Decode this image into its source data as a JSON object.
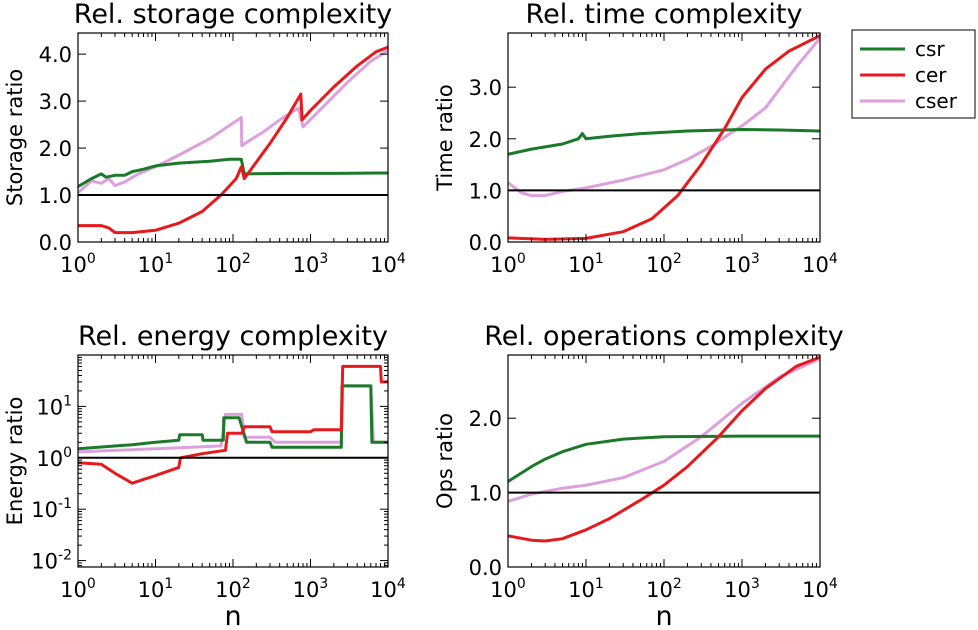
{
  "legend": {
    "position": "top-right",
    "items": [
      {
        "label": "csr",
        "color": "#1a7a29"
      },
      {
        "label": "cer",
        "color": "#e8191c"
      },
      {
        "label": "cser",
        "color": "#dda0dd"
      }
    ]
  },
  "shared_xlabel": "n",
  "baseline_color": "#000000",
  "chart_data": [
    {
      "type": "line",
      "title": "Rel. storage complexity",
      "ylabel": "Storage ratio",
      "xscale": "log",
      "yscale": "linear",
      "xlim": [
        1,
        10000
      ],
      "ylim": [
        0,
        4.45
      ],
      "yticks": [
        {
          "v": 0,
          "label": "0.0"
        },
        {
          "v": 1,
          "label": "1.0"
        },
        {
          "v": 2,
          "label": "2.0"
        },
        {
          "v": 3,
          "label": "3.0"
        },
        {
          "v": 4,
          "label": "4.0"
        }
      ],
      "xticks": [
        {
          "v": 1,
          "base": "10",
          "exp": "0"
        },
        {
          "v": 10,
          "base": "10",
          "exp": "1"
        },
        {
          "v": 100,
          "base": "10",
          "exp": "2"
        },
        {
          "v": 1000,
          "base": "10",
          "exp": "3"
        },
        {
          "v": 10000,
          "base": "10",
          "exp": "4"
        }
      ],
      "series": [
        {
          "name": "cser",
          "color": "#dda0dd",
          "points": [
            [
              1,
              1.05
            ],
            [
              1.5,
              1.3
            ],
            [
              2,
              1.25
            ],
            [
              2.5,
              1.35
            ],
            [
              3,
              1.2
            ],
            [
              4,
              1.28
            ],
            [
              6,
              1.45
            ],
            [
              10,
              1.6
            ],
            [
              20,
              1.85
            ],
            [
              50,
              2.2
            ],
            [
              128,
              2.65
            ],
            [
              130,
              2.05
            ],
            [
              160,
              2.15
            ],
            [
              250,
              2.35
            ],
            [
              400,
              2.6
            ],
            [
              700,
              2.85
            ],
            [
              800,
              2.45
            ],
            [
              1500,
              2.9
            ],
            [
              3000,
              3.4
            ],
            [
              6000,
              3.85
            ],
            [
              10000,
              4.08
            ]
          ]
        },
        {
          "name": "csr",
          "color": "#1a7a29",
          "points": [
            [
              1,
              1.18
            ],
            [
              1.5,
              1.35
            ],
            [
              2,
              1.45
            ],
            [
              2.3,
              1.38
            ],
            [
              3,
              1.42
            ],
            [
              4,
              1.42
            ],
            [
              5,
              1.5
            ],
            [
              7,
              1.55
            ],
            [
              10,
              1.62
            ],
            [
              20,
              1.68
            ],
            [
              50,
              1.72
            ],
            [
              90,
              1.76
            ],
            [
              128,
              1.76
            ],
            [
              140,
              1.45
            ],
            [
              500,
              1.46
            ],
            [
              2000,
              1.46
            ],
            [
              10000,
              1.47
            ]
          ]
        },
        {
          "name": "cer",
          "color": "#e8191c",
          "points": [
            [
              1,
              0.35
            ],
            [
              2,
              0.35
            ],
            [
              2.5,
              0.3
            ],
            [
              3,
              0.2
            ],
            [
              5,
              0.2
            ],
            [
              10,
              0.25
            ],
            [
              20,
              0.4
            ],
            [
              40,
              0.65
            ],
            [
              70,
              1.0
            ],
            [
              110,
              1.35
            ],
            [
              128,
              1.6
            ],
            [
              140,
              1.35
            ],
            [
              180,
              1.6
            ],
            [
              300,
              2.1
            ],
            [
              500,
              2.65
            ],
            [
              750,
              3.15
            ],
            [
              780,
              2.6
            ],
            [
              1000,
              2.8
            ],
            [
              2000,
              3.3
            ],
            [
              4000,
              3.75
            ],
            [
              7000,
              4.05
            ],
            [
              10000,
              4.15
            ]
          ]
        },
        {
          "name": "baseline",
          "color": "#000000",
          "points": [
            [
              1,
              1.0
            ],
            [
              10000,
              1.0
            ]
          ]
        }
      ]
    },
    {
      "type": "line",
      "title": "Rel. time complexity",
      "ylabel": "Time ratio",
      "xscale": "log",
      "yscale": "linear",
      "xlim": [
        1,
        10000
      ],
      "ylim": [
        0,
        4.05
      ],
      "yticks": [
        {
          "v": 0,
          "label": "0.0"
        },
        {
          "v": 1,
          "label": "1.0"
        },
        {
          "v": 2,
          "label": "2.0"
        },
        {
          "v": 3,
          "label": "3.0"
        }
      ],
      "xticks": [
        {
          "v": 1,
          "base": "10",
          "exp": "0"
        },
        {
          "v": 10,
          "base": "10",
          "exp": "1"
        },
        {
          "v": 100,
          "base": "10",
          "exp": "2"
        },
        {
          "v": 1000,
          "base": "10",
          "exp": "3"
        },
        {
          "v": 10000,
          "base": "10",
          "exp": "4"
        }
      ],
      "series": [
        {
          "name": "cser",
          "color": "#dda0dd",
          "points": [
            [
              1,
              1.15
            ],
            [
              1.5,
              0.95
            ],
            [
              2,
              0.9
            ],
            [
              3,
              0.9
            ],
            [
              5,
              0.98
            ],
            [
              10,
              1.05
            ],
            [
              30,
              1.2
            ],
            [
              100,
              1.4
            ],
            [
              200,
              1.6
            ],
            [
              400,
              1.85
            ],
            [
              700,
              2.1
            ],
            [
              1000,
              2.25
            ],
            [
              2000,
              2.6
            ],
            [
              5000,
              3.4
            ],
            [
              10000,
              3.95
            ]
          ]
        },
        {
          "name": "csr",
          "color": "#1a7a29",
          "points": [
            [
              1,
              1.7
            ],
            [
              2,
              1.8
            ],
            [
              5,
              1.9
            ],
            [
              8,
              2.0
            ],
            [
              9,
              2.1
            ],
            [
              10,
              2.0
            ],
            [
              20,
              2.05
            ],
            [
              50,
              2.1
            ],
            [
              200,
              2.15
            ],
            [
              1000,
              2.18
            ],
            [
              3000,
              2.17
            ],
            [
              10000,
              2.15
            ]
          ]
        },
        {
          "name": "cer",
          "color": "#e8191c",
          "points": [
            [
              1,
              0.08
            ],
            [
              3,
              0.05
            ],
            [
              10,
              0.07
            ],
            [
              30,
              0.2
            ],
            [
              70,
              0.45
            ],
            [
              150,
              0.9
            ],
            [
              300,
              1.5
            ],
            [
              600,
              2.2
            ],
            [
              1000,
              2.8
            ],
            [
              2000,
              3.35
            ],
            [
              4000,
              3.7
            ],
            [
              10000,
              4.0
            ]
          ]
        },
        {
          "name": "baseline",
          "color": "#000000",
          "points": [
            [
              1,
              1.0
            ],
            [
              10000,
              1.0
            ]
          ]
        }
      ]
    },
    {
      "type": "line",
      "title": "Rel. energy complexity",
      "ylabel": "Energy ratio",
      "xscale": "log",
      "yscale": "log",
      "xlim": [
        1,
        10000
      ],
      "ylim": [
        0.0075,
        100
      ],
      "yticks": [
        {
          "v": 0.01,
          "base": "10",
          "exp": "-2"
        },
        {
          "v": 0.1,
          "base": "10",
          "exp": "-1"
        },
        {
          "v": 1,
          "base": "10",
          "exp": "0"
        },
        {
          "v": 10,
          "base": "10",
          "exp": "1"
        }
      ],
      "xticks": [
        {
          "v": 1,
          "base": "10",
          "exp": "0"
        },
        {
          "v": 10,
          "base": "10",
          "exp": "1"
        },
        {
          "v": 100,
          "base": "10",
          "exp": "2"
        },
        {
          "v": 1000,
          "base": "10",
          "exp": "3"
        },
        {
          "v": 10000,
          "base": "10",
          "exp": "4"
        }
      ],
      "series": [
        {
          "name": "cser",
          "color": "#dda0dd",
          "points": [
            [
              1,
              1.3
            ],
            [
              10,
              1.5
            ],
            [
              30,
              1.6
            ],
            [
              70,
              1.7
            ],
            [
              80,
              7
            ],
            [
              130,
              7
            ],
            [
              140,
              2.5
            ],
            [
              300,
              2.5
            ],
            [
              350,
              2.0
            ],
            [
              2500,
              2.0
            ],
            [
              2600,
              25
            ],
            [
              6000,
              25
            ],
            [
              6500,
              2.0
            ],
            [
              10000,
              2.0
            ]
          ]
        },
        {
          "name": "csr",
          "color": "#1a7a29",
          "points": [
            [
              1,
              1.5
            ],
            [
              5,
              1.8
            ],
            [
              10,
              2.0
            ],
            [
              20,
              2.2
            ],
            [
              20.5,
              2.8
            ],
            [
              40,
              2.8
            ],
            [
              41,
              2.2
            ],
            [
              75,
              2.2
            ],
            [
              76,
              6
            ],
            [
              120,
              6
            ],
            [
              150,
              2.0
            ],
            [
              300,
              2.0
            ],
            [
              320,
              1.6
            ],
            [
              2500,
              1.6
            ],
            [
              2550,
              25
            ],
            [
              6000,
              25
            ],
            [
              6200,
              2.0
            ],
            [
              10000,
              2.0
            ]
          ]
        },
        {
          "name": "cer",
          "color": "#e8191c",
          "points": [
            [
              1,
              0.8
            ],
            [
              2,
              0.75
            ],
            [
              3,
              0.5
            ],
            [
              5,
              0.32
            ],
            [
              10,
              0.45
            ],
            [
              20,
              0.65
            ],
            [
              21,
              1.0
            ],
            [
              40,
              1.2
            ],
            [
              80,
              1.4
            ],
            [
              85,
              3.0
            ],
            [
              130,
              3.0
            ],
            [
              140,
              4.0
            ],
            [
              300,
              4.0
            ],
            [
              320,
              3.2
            ],
            [
              1000,
              3.2
            ],
            [
              1100,
              3.5
            ],
            [
              2500,
              3.5
            ],
            [
              2600,
              60
            ],
            [
              8000,
              60
            ],
            [
              8200,
              30
            ],
            [
              10000,
              30
            ]
          ]
        },
        {
          "name": "baseline",
          "color": "#000000",
          "points": [
            [
              1,
              1.0
            ],
            [
              10000,
              1.0
            ]
          ]
        }
      ]
    },
    {
      "type": "line",
      "title": "Rel. operations complexity",
      "ylabel": "Ops ratio",
      "xscale": "log",
      "yscale": "linear",
      "xlim": [
        1,
        10000
      ],
      "ylim": [
        0,
        2.85
      ],
      "yticks": [
        {
          "v": 0,
          "label": "0.0"
        },
        {
          "v": 1,
          "label": "1.0"
        },
        {
          "v": 2,
          "label": "2.0"
        }
      ],
      "xticks": [
        {
          "v": 1,
          "base": "10",
          "exp": "0"
        },
        {
          "v": 10,
          "base": "10",
          "exp": "1"
        },
        {
          "v": 100,
          "base": "10",
          "exp": "2"
        },
        {
          "v": 1000,
          "base": "10",
          "exp": "3"
        },
        {
          "v": 10000,
          "base": "10",
          "exp": "4"
        }
      ],
      "series": [
        {
          "name": "cser",
          "color": "#dda0dd",
          "points": [
            [
              1,
              0.88
            ],
            [
              2,
              0.98
            ],
            [
              5,
              1.06
            ],
            [
              10,
              1.1
            ],
            [
              30,
              1.2
            ],
            [
              100,
              1.42
            ],
            [
              300,
              1.75
            ],
            [
              1000,
              2.2
            ],
            [
              3000,
              2.55
            ],
            [
              10000,
              2.8
            ]
          ]
        },
        {
          "name": "csr",
          "color": "#1a7a29",
          "points": [
            [
              1,
              1.15
            ],
            [
              2,
              1.35
            ],
            [
              3,
              1.45
            ],
            [
              5,
              1.55
            ],
            [
              10,
              1.65
            ],
            [
              30,
              1.72
            ],
            [
              100,
              1.75
            ],
            [
              1000,
              1.76
            ],
            [
              10000,
              1.76
            ]
          ]
        },
        {
          "name": "cer",
          "color": "#e8191c",
          "points": [
            [
              1,
              0.42
            ],
            [
              2,
              0.36
            ],
            [
              3,
              0.35
            ],
            [
              5,
              0.38
            ],
            [
              10,
              0.5
            ],
            [
              20,
              0.65
            ],
            [
              50,
              0.9
            ],
            [
              100,
              1.1
            ],
            [
              200,
              1.35
            ],
            [
              500,
              1.75
            ],
            [
              1000,
              2.1
            ],
            [
              2000,
              2.4
            ],
            [
              5000,
              2.7
            ],
            [
              10000,
              2.82
            ]
          ]
        },
        {
          "name": "baseline",
          "color": "#000000",
          "points": [
            [
              1,
              1.0
            ],
            [
              10000,
              1.0
            ]
          ]
        }
      ]
    }
  ]
}
